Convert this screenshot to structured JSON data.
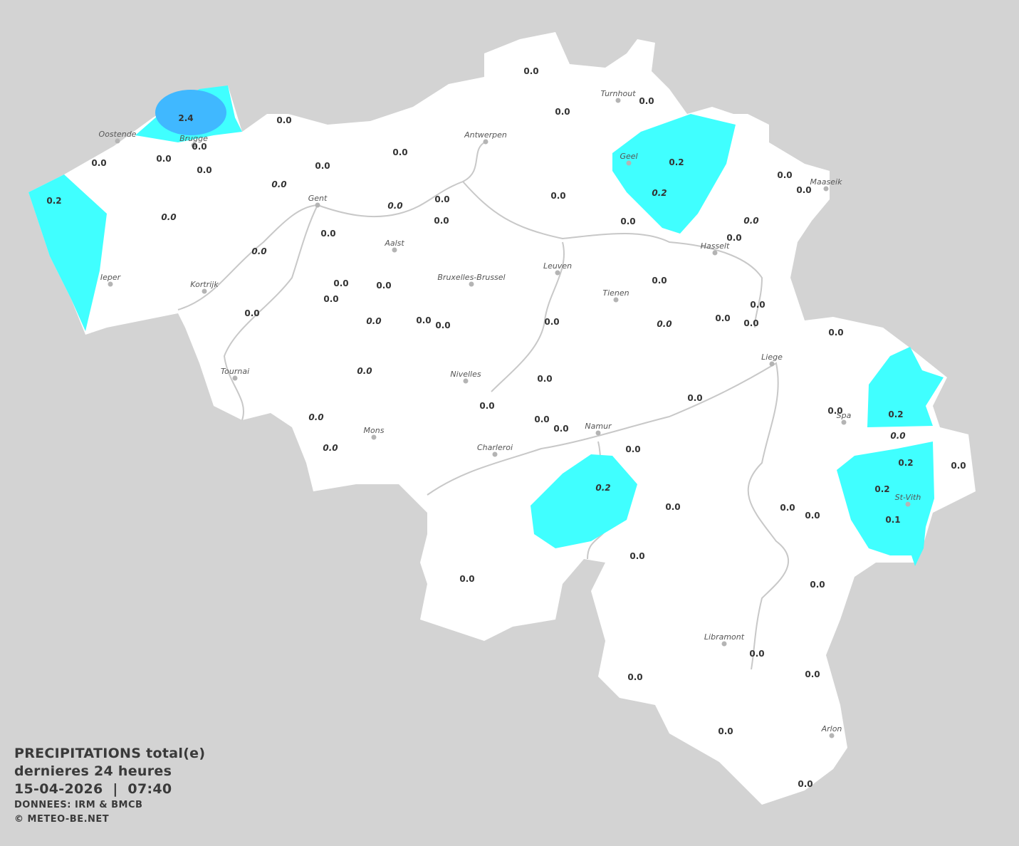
{
  "legend": {
    "title": "PRECIPITATIONS total(e)",
    "period": "dernieres 24 heures",
    "datetime": "15-04-2026  |  07:40",
    "source": "DONNEES: IRM & BMCB",
    "copyright": "© METEO-BE.NET"
  },
  "colors": {
    "background": "#d3d3d3",
    "land": "#ffffff",
    "precip_light": "#40ffff",
    "precip_medium": "#40b8ff",
    "river": "#c8c8c8",
    "city_dot": "#b4b4b4"
  },
  "cities": [
    "Oostende",
    "Brugge",
    "Antwerpen",
    "Turnhout",
    "Geel",
    "Maaseik",
    "Gent",
    "Aalst",
    "Hasselt",
    "Leuven",
    "Bruxelles-Brussel",
    "Ieper",
    "Kortrijk",
    "Tienen",
    "Liege",
    "Tournai",
    "Nivelles",
    "Spa",
    "Namur",
    "Mons",
    "Charleroi",
    "St-Vith",
    "Libramont",
    "Arlon"
  ],
  "station_values": [
    "0.0",
    "0.0",
    "0.0",
    "0.0",
    "2.4",
    "0.0",
    "0.0",
    "0.0",
    "0.0",
    "0.0",
    "0.0",
    "0.0",
    "0.2",
    "0.0",
    "0.0",
    "0.0",
    "0.0",
    "0.0",
    "0.0",
    "0.2",
    "0.2",
    "0.0",
    "0.0",
    "0.0",
    "0.0",
    "0.0",
    "0.0",
    "0.0",
    "0.0",
    "0.0",
    "0.0",
    "0.0",
    "0.0",
    "0.0",
    "0.0",
    "0.0",
    "0.0",
    "0.0",
    "0.0",
    "0.0",
    "0.0",
    "0.0",
    "0.0",
    "0.0",
    "0.0",
    "0.0",
    "0.0",
    "0.0",
    "0.0",
    "0.0",
    "0.0",
    "0.2",
    "0.0",
    "0.2",
    "0.0",
    "0.2",
    "0.1",
    "0.0",
    "0.0",
    "0.2",
    "0.0",
    "0.0",
    "0.0",
    "0.0",
    "0.0",
    "0.0",
    "0.0",
    "0.0",
    "0.0"
  ]
}
